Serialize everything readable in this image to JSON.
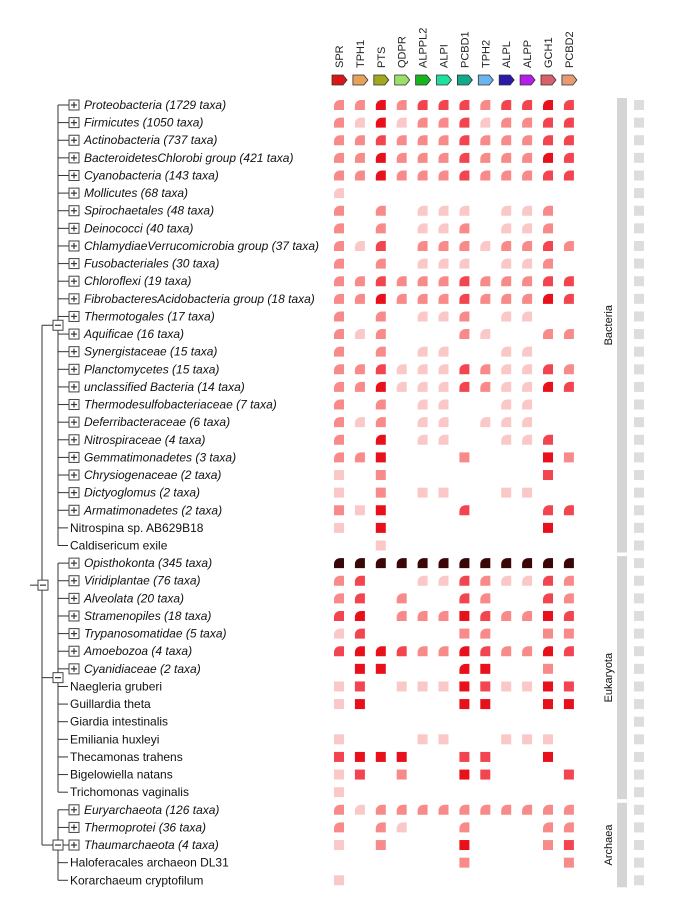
{
  "genes": [
    {
      "name": "SPR",
      "color": "#d81818"
    },
    {
      "name": "TPH1",
      "color": "#e6a25c"
    },
    {
      "name": "PTS",
      "color": "#a0a81e"
    },
    {
      "name": "QDPR",
      "color": "#9ae06a"
    },
    {
      "name": "ALPPL2",
      "color": "#15b51f"
    },
    {
      "name": "ALPI",
      "color": "#1ee09e"
    },
    {
      "name": "PCBD1",
      "color": "#12a88a"
    },
    {
      "name": "TPH2",
      "color": "#6ab4f0"
    },
    {
      "name": "ALPL",
      "color": "#2a1aa8"
    },
    {
      "name": "ALPP",
      "color": "#b51ee6"
    },
    {
      "name": "GCH1",
      "color": "#d8606a"
    },
    {
      "name": "PCBD2",
      "color": "#e89a70"
    }
  ],
  "colors": {
    "light": "#fbc8c8",
    "medium": "#f98a8a",
    "strong": "#f2454f",
    "intense": "#e8101a",
    "darkest": "#3a0606",
    "group_bar": "#d5d5d5",
    "score_box": "#dddddd",
    "tree_line": "#333333"
  },
  "taxa": [
    {
      "label": "Proteobacteria (1729 taxa)",
      "collapsed": true,
      "cells": [
        "2q",
        "2q",
        "4q",
        "2q",
        "3q",
        "3q",
        "3q",
        "2q",
        "3q",
        "3q",
        "4q",
        "3q"
      ]
    },
    {
      "label": "Firmicutes (1050 taxa)",
      "collapsed": true,
      "cells": [
        "2q",
        "1q",
        "4q",
        "1q",
        "2q",
        "2q",
        "3q",
        "1q",
        "2q",
        "2q",
        "3q",
        "3q"
      ]
    },
    {
      "label": "Actinobacteria (737 taxa)",
      "collapsed": true,
      "cells": [
        "2q",
        "2q",
        "3q",
        "2q",
        "2q",
        "2q",
        "3q",
        "2q",
        "2q",
        "2q",
        "3q",
        "3q"
      ]
    },
    {
      "label": "BacteroidetesChlorobi group (421 taxa)",
      "collapsed": true,
      "cells": [
        "2q",
        "2q",
        "4q",
        "2q",
        "2q",
        "2q",
        "3q",
        "2q",
        "2q",
        "2q",
        "4q",
        "3q"
      ]
    },
    {
      "label": "Cyanobacteria (143 taxa)",
      "collapsed": true,
      "cells": [
        "2q",
        "2q",
        "4q",
        "2q",
        "2q",
        "2q",
        "3q",
        "2q",
        "2q",
        "2q",
        "3q",
        "3q"
      ]
    },
    {
      "label": "Mollicutes (68 taxa)",
      "collapsed": true,
      "cells": [
        "1q",
        "0",
        "0",
        "0",
        "0",
        "0",
        "0",
        "0",
        "0",
        "0",
        "0",
        "0"
      ]
    },
    {
      "label": "Spirochaetales (48 taxa)",
      "collapsed": true,
      "cells": [
        "2q",
        "0",
        "2q",
        "0",
        "1q",
        "1q",
        "1q",
        "0",
        "1q",
        "1q",
        "2q",
        "0"
      ]
    },
    {
      "label": "Deinococci (40 taxa)",
      "collapsed": true,
      "cells": [
        "2q",
        "0",
        "2q",
        "0",
        "1q",
        "1q",
        "2q",
        "0",
        "1q",
        "1q",
        "2q",
        "0"
      ]
    },
    {
      "label": "ChlamydiaeVerrucomicrobia group (37 taxa)",
      "collapsed": true,
      "cells": [
        "2q",
        "1q",
        "3q",
        "0",
        "2q",
        "2q",
        "2q",
        "1q",
        "2q",
        "2q",
        "3q",
        "2q"
      ]
    },
    {
      "label": "Fusobacteriales (30 taxa)",
      "collapsed": true,
      "cells": [
        "2q",
        "0",
        "2q",
        "0",
        "1q",
        "1q",
        "1q",
        "0",
        "1q",
        "1q",
        "2q",
        "0"
      ]
    },
    {
      "label": "Chloroflexi (19 taxa)",
      "collapsed": true,
      "cells": [
        "2q",
        "2q",
        "3q",
        "2q",
        "2q",
        "2q",
        "3q",
        "2q",
        "2q",
        "2q",
        "3q",
        "3q"
      ]
    },
    {
      "label": "FibrobacteresAcidobacteria group (18 taxa)",
      "collapsed": true,
      "cells": [
        "2q",
        "2q",
        "4q",
        "2q",
        "2q",
        "2q",
        "3q",
        "2q",
        "2q",
        "2q",
        "4q",
        "3q"
      ]
    },
    {
      "label": "Thermotogales (17 taxa)",
      "collapsed": true,
      "cells": [
        "2q",
        "0",
        "2q",
        "0",
        "1q",
        "1q",
        "2q",
        "0",
        "1q",
        "1q",
        "0",
        "0"
      ]
    },
    {
      "label": "Aquificae (16 taxa)",
      "collapsed": true,
      "cells": [
        "2q",
        "1q",
        "2q",
        "0",
        "0",
        "0",
        "2q",
        "1q",
        "0",
        "0",
        "2q",
        "2q"
      ]
    },
    {
      "label": "Synergistaceae (15 taxa)",
      "collapsed": true,
      "cells": [
        "2q",
        "0",
        "2q",
        "0",
        "1q",
        "1q",
        "0",
        "0",
        "1q",
        "1q",
        "0",
        "0"
      ]
    },
    {
      "label": "Planctomycetes (15 taxa)",
      "collapsed": true,
      "cells": [
        "2q",
        "2q",
        "3q",
        "1q",
        "1q",
        "1q",
        "3q",
        "2q",
        "1q",
        "1q",
        "3q",
        "2q"
      ]
    },
    {
      "label": "unclassified Bacteria (14 taxa)",
      "collapsed": true,
      "cells": [
        "2q",
        "2q",
        "4q",
        "1q",
        "1q",
        "1q",
        "3q",
        "2q",
        "1q",
        "1q",
        "4q",
        "3q"
      ]
    },
    {
      "label": "Thermodesulfobacteriaceae (7 taxa)",
      "collapsed": true,
      "cells": [
        "2q",
        "0",
        "2q",
        "0",
        "1q",
        "1q",
        "0",
        "0",
        "1q",
        "1q",
        "0",
        "0"
      ]
    },
    {
      "label": "Deferribacteraceae (6 taxa)",
      "collapsed": true,
      "cells": [
        "2q",
        "1q",
        "2q",
        "0",
        "1q",
        "1q",
        "0",
        "1q",
        "1q",
        "1q",
        "0",
        "0"
      ]
    },
    {
      "label": "Nitrospiraceae (4 taxa)",
      "collapsed": true,
      "cells": [
        "2q",
        "0",
        "4q",
        "0",
        "1q",
        "1q",
        "0",
        "0",
        "1q",
        "1q",
        "3q",
        "0"
      ]
    },
    {
      "label": "Gemmatimonadetes (3 taxa)",
      "collapsed": true,
      "cells": [
        "2q",
        "2q",
        "4s",
        "0",
        "0",
        "0",
        "2s",
        "0",
        "0",
        "0",
        "4s",
        "2s"
      ]
    },
    {
      "label": "Chrysiogenaceae (2 taxa)",
      "collapsed": true,
      "cells": [
        "1s",
        "0",
        "2s",
        "0",
        "0",
        "0",
        "0",
        "0",
        "0",
        "0",
        "3s",
        "0"
      ]
    },
    {
      "label": "Dictyoglomus (2 taxa)",
      "collapsed": true,
      "cells": [
        "1s",
        "0",
        "2s",
        "0",
        "1s",
        "1s",
        "0",
        "0",
        "1s",
        "1s",
        "0",
        "0"
      ]
    },
    {
      "label": "Armatimonadetes (2 taxa)",
      "collapsed": true,
      "cells": [
        "2s",
        "1s",
        "4s",
        "0",
        "0",
        "0",
        "3q",
        "0",
        "0",
        "0",
        "3q",
        "3q"
      ]
    },
    {
      "label": "Nitrospina sp. AB629B18",
      "collapsed": false,
      "cells": [
        "1s",
        "0",
        "4s",
        "0",
        "0",
        "0",
        "0",
        "0",
        "0",
        "0",
        "4s",
        "0"
      ]
    },
    {
      "label": "Caldisericum exile",
      "collapsed": false,
      "cells": [
        "0",
        "0",
        "1s",
        "0",
        "0",
        "0",
        "0",
        "0",
        "0",
        "0",
        "0",
        "0"
      ]
    },
    {
      "label": "Opisthokonta (345 taxa)",
      "collapsed": true,
      "cells": [
        "5q",
        "5q",
        "5q",
        "5q",
        "5q",
        "5q",
        "5q",
        "5q",
        "5q",
        "5q",
        "5q",
        "5q"
      ]
    },
    {
      "label": "Viridiplantae (76 taxa)",
      "collapsed": true,
      "cells": [
        "2q",
        "3q",
        "0",
        "0",
        "1q",
        "1q",
        "3q",
        "2q",
        "1q",
        "1q",
        "3q",
        "2q"
      ]
    },
    {
      "label": "Alveolata (20 taxa)",
      "collapsed": true,
      "cells": [
        "2q",
        "3q",
        "0",
        "2q",
        "0",
        "0",
        "3q",
        "2q",
        "0",
        "0",
        "3q",
        "2q"
      ]
    },
    {
      "label": "Stramenopiles (18 taxa)",
      "collapsed": true,
      "cells": [
        "3q",
        "4q",
        "0",
        "2q",
        "2q",
        "2q",
        "4s",
        "3q",
        "2q",
        "2q",
        "4s",
        "3q"
      ]
    },
    {
      "label": "Trypanosomatidae (5 taxa)",
      "collapsed": true,
      "cells": [
        "1q",
        "3q",
        "0",
        "0",
        "0",
        "0",
        "2s",
        "2q",
        "0",
        "0",
        "2s",
        "2s"
      ]
    },
    {
      "label": "Amoebozoa (4 taxa)",
      "collapsed": true,
      "cells": [
        "3q",
        "4q",
        "4q",
        "3q",
        "2q",
        "2q",
        "4q",
        "3q",
        "2q",
        "2q",
        "4q",
        "3q"
      ]
    },
    {
      "label": "Cyanidiaceae (2 taxa)",
      "collapsed": true,
      "cells": [
        "0",
        "4s",
        "4s",
        "0",
        "0",
        "0",
        "4q",
        "4s",
        "0",
        "0",
        "2s",
        "0"
      ]
    },
    {
      "label": "Naegleria gruberi",
      "collapsed": false,
      "cells": [
        "1s",
        "3s",
        "0",
        "1s",
        "1s",
        "1s",
        "4s",
        "3s",
        "1s",
        "1s",
        "4s",
        "3s"
      ]
    },
    {
      "label": "Guillardia theta",
      "collapsed": false,
      "cells": [
        "1s",
        "4s",
        "0",
        "0",
        "0",
        "0",
        "4s",
        "4s",
        "0",
        "0",
        "4s",
        "4s"
      ]
    },
    {
      "label": "Giardia intestinalis",
      "collapsed": false,
      "cells": [
        "0",
        "0",
        "0",
        "0",
        "0",
        "0",
        "0",
        "0",
        "0",
        "0",
        "0",
        "0"
      ]
    },
    {
      "label": "Emiliania huxleyi",
      "collapsed": false,
      "cells": [
        "1s",
        "0",
        "0",
        "0",
        "1s",
        "1s",
        "0",
        "0",
        "1s",
        "1s",
        "1s",
        "0"
      ]
    },
    {
      "label": "Thecamonas trahens",
      "collapsed": false,
      "cells": [
        "3s",
        "4s",
        "4s",
        "4s",
        "0",
        "0",
        "3s",
        "3s",
        "0",
        "0",
        "4s",
        "0"
      ]
    },
    {
      "label": "Bigelowiella natans",
      "collapsed": false,
      "cells": [
        "1s",
        "3s",
        "0",
        "2s",
        "0",
        "0",
        "4s",
        "3s",
        "0",
        "0",
        "0",
        "3s"
      ]
    },
    {
      "label": "Trichomonas vaginalis",
      "collapsed": false,
      "cells": [
        "1s",
        "0",
        "0",
        "0",
        "0",
        "0",
        "0",
        "0",
        "0",
        "0",
        "0",
        "0"
      ]
    },
    {
      "label": "Euryarchaeota (126 taxa)",
      "collapsed": true,
      "cells": [
        "2q",
        "1q",
        "2q",
        "2q",
        "2q",
        "2q",
        "2q",
        "2q",
        "2q",
        "2q",
        "2q",
        "2q"
      ]
    },
    {
      "label": "Thermoprotei (36 taxa)",
      "collapsed": true,
      "cells": [
        "2q",
        "0",
        "2q",
        "1q",
        "0",
        "0",
        "2q",
        "0",
        "0",
        "0",
        "2q",
        "2q"
      ]
    },
    {
      "label": "Thaumarchaeota (4 taxa)",
      "collapsed": true,
      "cells": [
        "1s",
        "0",
        "2s",
        "0",
        "0",
        "0",
        "4s",
        "0",
        "0",
        "0",
        "2s",
        "3s"
      ]
    },
    {
      "label": "Haloferacales archaeon DL31",
      "collapsed": false,
      "cells": [
        "0",
        "0",
        "0",
        "0",
        "0",
        "0",
        "2s",
        "0",
        "0",
        "0",
        "0",
        "2s"
      ]
    },
    {
      "label": "Korarchaeum cryptofilum",
      "collapsed": false,
      "cells": [
        "1s",
        "0",
        "0",
        "0",
        "0",
        "0",
        "0",
        "0",
        "0",
        "0",
        "0",
        "0"
      ]
    }
  ],
  "groups": [
    {
      "label": "Bacteria"
    },
    {
      "label": "Eukaryota"
    },
    {
      "label": "Archaea"
    }
  ]
}
